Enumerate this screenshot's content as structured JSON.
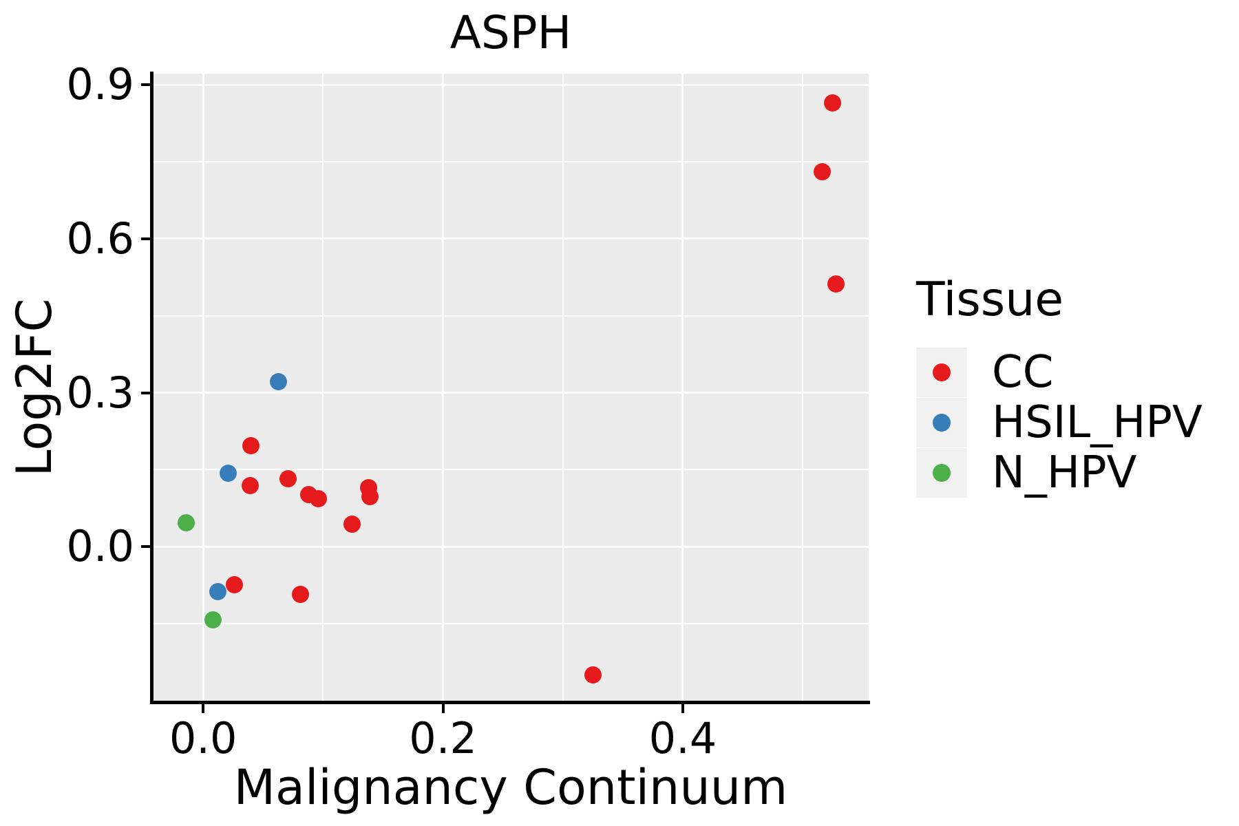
{
  "chart_data": {
    "type": "scatter",
    "title": "ASPH",
    "xlabel": "Malignancy Continuum",
    "ylabel": "Log2FC",
    "xlim": [
      -0.042,
      0.555
    ],
    "ylim": [
      -0.303,
      0.922
    ],
    "x_major_ticks": [
      0.0,
      0.2,
      0.4
    ],
    "x_tick_labels": [
      "0.0",
      "0.2",
      "0.4"
    ],
    "x_minor_ticks": [
      0.1,
      0.3,
      0.5
    ],
    "y_major_ticks": [
      0.0,
      0.3,
      0.6,
      0.9
    ],
    "y_tick_labels": [
      "0.0",
      "0.3",
      "0.6",
      "0.9"
    ],
    "y_minor_ticks": [
      -0.15,
      0.15,
      0.45,
      0.75
    ],
    "grid": true,
    "panel_background": "#EBEBEB",
    "gridline_color": "#ffffff",
    "legend": {
      "title": "Tissue",
      "position": "right",
      "key_background": "#F0F0F0",
      "items": [
        {
          "label": "CC",
          "color": "#E41A1C"
        },
        {
          "label": "HSIL_HPV",
          "color": "#377EB8"
        },
        {
          "label": "N_HPV",
          "color": "#4DAF4A"
        }
      ]
    },
    "series": [
      {
        "name": "HSIL_HPV",
        "color": "#377EB8",
        "points": [
          [
            0.063,
            0.321
          ],
          [
            0.021,
            0.143
          ],
          [
            0.012,
            -0.087
          ]
        ]
      },
      {
        "name": "N_HPV",
        "color": "#4DAF4A",
        "points": [
          [
            -0.014,
            0.046
          ],
          [
            0.008,
            -0.142
          ]
        ]
      },
      {
        "name": "CC",
        "color": "#E41A1C",
        "points": [
          [
            0.04,
            0.197
          ],
          [
            0.039,
            0.119
          ],
          [
            0.071,
            0.132
          ],
          [
            0.088,
            0.101
          ],
          [
            0.096,
            0.094
          ],
          [
            0.138,
            0.115
          ],
          [
            0.139,
            0.098
          ],
          [
            0.124,
            0.044
          ],
          [
            0.026,
            -0.074
          ],
          [
            0.081,
            -0.093
          ],
          [
            0.325,
            -0.25
          ],
          [
            0.525,
            0.865
          ],
          [
            0.516,
            0.731
          ],
          [
            0.528,
            0.512
          ]
        ]
      }
    ]
  }
}
